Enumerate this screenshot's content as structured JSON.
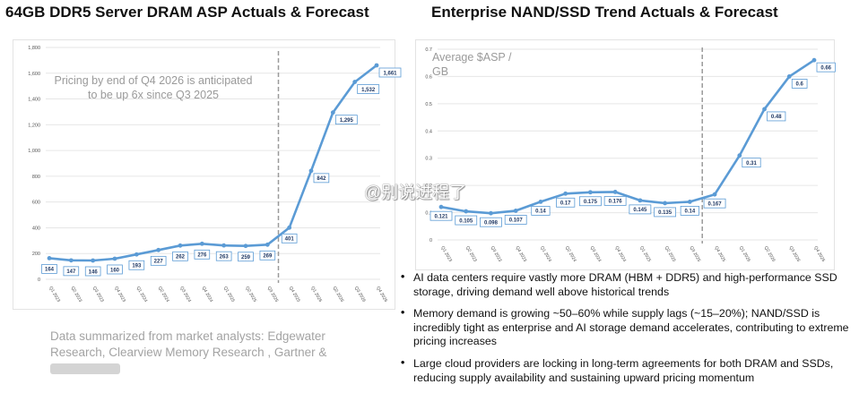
{
  "chart_data": [
    {
      "type": "line",
      "title": "64GB DDR5 Server DRAM ASP Actuals & Forecast",
      "categories": [
        "Q1 2023",
        "Q2 2023",
        "Q3 2023",
        "Q4 2023",
        "Q1 2024",
        "Q2 2024",
        "Q3 2024",
        "Q4 2024",
        "Q1 2025",
        "Q2 2025",
        "Q3 2025",
        "Q4 2025",
        "Q1 2026",
        "Q2 2026",
        "Q3 2026",
        "Q4 2026"
      ],
      "values": [
        164,
        147,
        146,
        160,
        193,
        227,
        262,
        276,
        263,
        259,
        269,
        401,
        842,
        1295,
        1532,
        1661
      ],
      "data_labels": [
        "164",
        "147",
        "146",
        "160",
        "193",
        "227",
        "262",
        "276",
        "263",
        "259",
        "269",
        "401",
        "842",
        "1,295",
        "1,532",
        "1,661"
      ],
      "ylim": [
        0,
        1800
      ],
      "yticks": [
        "0",
        "200",
        "400",
        "600",
        "800",
        "1,000",
        "1,200",
        "1,400",
        "1,600",
        "1,800"
      ],
      "forecast_divider_after": "Q3 2025",
      "annotation": "Pricing by end of Q4 2026 is anticipated to be up 6x since Q3 2025",
      "grid": true,
      "colors": {
        "line": "#5b9bd5",
        "label_border": "#5b9bd5",
        "label_text": "#1f3864",
        "divider": "#9a9a9a"
      }
    },
    {
      "type": "line",
      "title": "Enterprise NAND/SSD Trend Actuals & Forecast",
      "ylabel": "Average $ASP / GB",
      "categories": [
        "Q1 2023",
        "Q2 2023",
        "Q3 2023",
        "Q4 2023",
        "Q1 2024",
        "Q2 2024",
        "Q3 2024",
        "Q4 2024",
        "Q1 2025",
        "Q2 2025",
        "Q3 2025",
        "Q4 2025",
        "Q1 2026",
        "Q2 2026",
        "Q3 2026",
        "Q4 2026"
      ],
      "values": [
        0.121,
        0.105,
        0.098,
        0.107,
        0.14,
        0.17,
        0.175,
        0.176,
        0.145,
        0.135,
        0.14,
        0.167,
        0.31,
        0.48,
        0.6,
        0.66
      ],
      "data_labels": [
        "0.121",
        "0.105",
        "0.098",
        "0.107",
        "0.14",
        "0.17",
        "0.175",
        "0.176",
        "0.145",
        "0.135",
        "0.14",
        "0.167",
        "0.31",
        "0.48",
        "0.6",
        "0.66"
      ],
      "ylim": [
        0,
        0.7
      ],
      "yticks": [
        "0",
        "0.1",
        "0.2",
        "0.3",
        "0.4",
        "0.5",
        "0.6",
        "0.7"
      ],
      "forecast_divider_after": "Q3 2025",
      "grid": true,
      "colors": {
        "line": "#5b9bd5",
        "label_border": "#5b9bd5",
        "label_text": "#1f3864",
        "divider": "#9a9a9a"
      }
    }
  ],
  "left": {
    "title": "64GB DDR5 Server DRAM ASP Actuals & Forecast",
    "note": "Pricing by end of Q4 2026 is anticipated to be up 6x since Q3 2025",
    "source": "Data summarized from market analysts: Edgewater Research, Clearview Memory Research , Gartner &"
  },
  "right": {
    "title": "Enterprise NAND/SSD Trend Actuals & Forecast",
    "ylabel": "Average $ASP / GB"
  },
  "bullets": [
    "AI data centers require vastly more DRAM (HBM + DDR5) and high-performance SSD storage, driving demand well above historical trends",
    "Memory demand is growing ~50–60% while supply lags (~15–20%); NAND/SSD is incredibly tight as enterprise and AI storage demand accelerates, contributing to extreme pricing increases",
    "Large cloud providers are locking in long-term agreements for both DRAM and SSDs, reducing supply availability and sustaining upward pricing momentum"
  ],
  "bullet_symbol": "•",
  "watermark": "@别说进程了"
}
